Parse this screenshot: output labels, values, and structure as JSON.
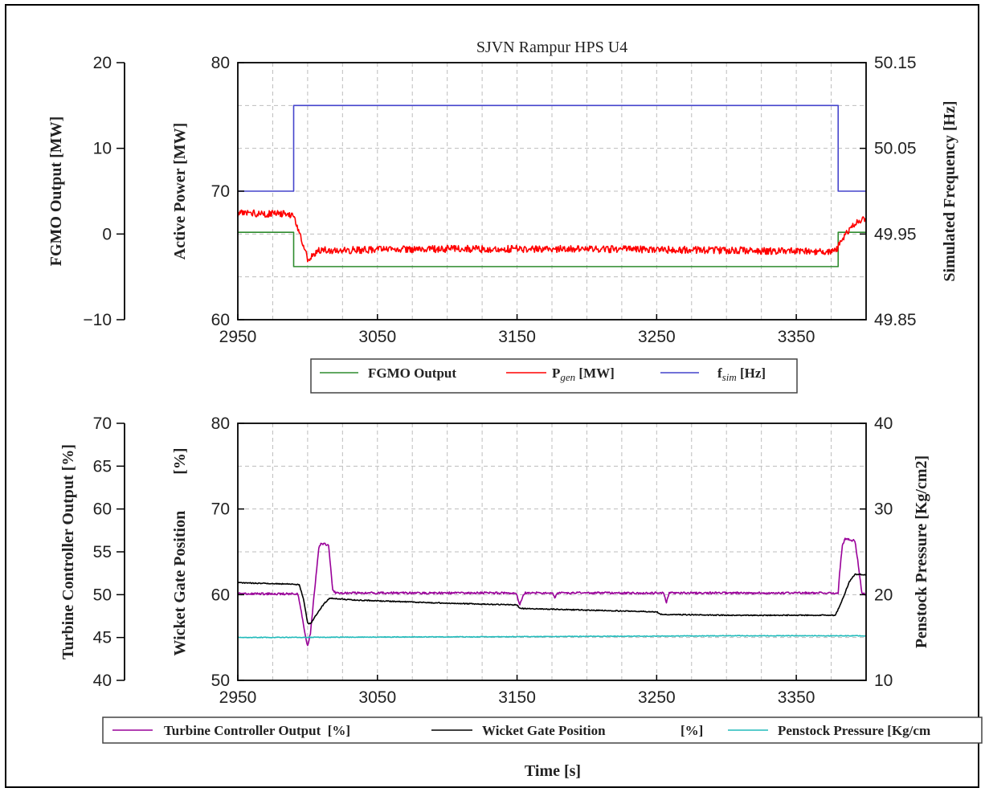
{
  "chart_data": [
    {
      "type": "line",
      "title": "SJVN Rampur HPS U4",
      "x_range": [
        2950,
        3400
      ],
      "x_ticks": [
        "2950",
        "3050",
        "3150",
        "3250",
        "3350"
      ],
      "grid": true,
      "legend_position": "bottom",
      "axes": {
        "outer_left": {
          "label": "FGMO Output [MW]",
          "range": [
            -10,
            20
          ],
          "ticks": [
            "20",
            "10",
            "0",
            "−10"
          ]
        },
        "inner_left": {
          "label": "Active Power [MW]",
          "range": [
            60,
            80
          ],
          "ticks": [
            "80",
            "70",
            "60"
          ]
        },
        "right": {
          "label": "Simulated Frequency  [Hz]",
          "range": [
            49.85,
            50.15
          ],
          "ticks": [
            "50.15",
            "50.05",
            "49.95",
            "49.85"
          ]
        }
      },
      "series": [
        {
          "name": "FGMO Output",
          "color": "#2e8b2e",
          "axis": "outer_left",
          "points": [
            [
              2950,
              0.2
            ],
            [
              2990,
              0.2
            ],
            [
              2990,
              -3.8
            ],
            [
              3380,
              -3.8
            ],
            [
              3380,
              0.2
            ],
            [
              3400,
              0.2
            ]
          ]
        },
        {
          "name": "P_gen [MW]",
          "color": "#ff0000",
          "axis": "inner_left",
          "noise": 0.28,
          "points": [
            [
              2950,
              68.3
            ],
            [
              2989,
              68.2
            ],
            [
              2993,
              67.2
            ],
            [
              2997,
              65.8
            ],
            [
              3000,
              64.7
            ],
            [
              3008,
              65.4
            ],
            [
              3020,
              65.4
            ],
            [
              3100,
              65.5
            ],
            [
              3200,
              65.5
            ],
            [
              3300,
              65.4
            ],
            [
              3370,
              65.3
            ],
            [
              3378,
              65.3
            ],
            [
              3383,
              66.2
            ],
            [
              3390,
              67.3
            ],
            [
              3396,
              67.8
            ],
            [
              3400,
              67.9
            ]
          ]
        },
        {
          "name": "f_sim [Hz]",
          "color": "#4444cc",
          "axis": "right",
          "points": [
            [
              2950,
              50.0
            ],
            [
              2990,
              50.0
            ],
            [
              2990,
              50.1
            ],
            [
              3380,
              50.1
            ],
            [
              3380,
              50.0
            ],
            [
              3400,
              50.0
            ]
          ]
        }
      ],
      "legend": [
        {
          "label": "FGMO Output",
          "label_main": "FGMO Output",
          "label_sub": "",
          "label_tail": ""
        },
        {
          "label": "Pgen [MW]",
          "label_main": "P",
          "label_sub": "gen",
          "label_tail": " [MW]"
        },
        {
          "label": "fsim [Hz]",
          "label_main": "f",
          "label_sub": "sim",
          "label_tail": " [Hz]"
        }
      ]
    },
    {
      "type": "line",
      "x_range": [
        2950,
        3400
      ],
      "x_ticks": [
        "2950",
        "3050",
        "3150",
        "3250",
        "3350"
      ],
      "xlabel": "Time [s]",
      "grid": true,
      "legend_position": "bottom",
      "axes": {
        "outer_left": {
          "label": "Turbine Controller Output  [%]",
          "range": [
            40,
            70
          ],
          "ticks": [
            "70",
            "65",
            "60",
            "55",
            "50",
            "45",
            "40"
          ]
        },
        "inner_left": {
          "label": "Wicket Gate Position         [%]",
          "range": [
            50,
            80
          ],
          "ticks": [
            "80",
            "70",
            "60",
            "50"
          ]
        },
        "right": {
          "label": "Penstock Pressure [Kg/cm2]",
          "range": [
            10,
            40
          ],
          "ticks": [
            "40",
            "30",
            "20",
            "10"
          ]
        }
      },
      "series": [
        {
          "name": "Turbine Controller Output  [%]",
          "color": "#990099",
          "axis": "outer_left",
          "noise": 0.12,
          "points": [
            [
              2950,
              50.1
            ],
            [
              2993,
              50.1
            ],
            [
              2995,
              48.5
            ],
            [
              2998,
              45.5
            ],
            [
              3000,
              44.0
            ],
            [
              3002,
              45.5
            ],
            [
              3005,
              50.5
            ],
            [
              3008,
              55.5
            ],
            [
              3010,
              56.0
            ],
            [
              3015,
              55.8
            ],
            [
              3016,
              54.0
            ],
            [
              3018,
              50.5
            ],
            [
              3020,
              50.2
            ],
            [
              3100,
              50.2
            ],
            [
              3148,
              50.2
            ],
            [
              3150,
              49.9
            ],
            [
              3152,
              48.8
            ],
            [
              3154,
              49.8
            ],
            [
              3156,
              50.2
            ],
            [
              3175,
              50.2
            ],
            [
              3177,
              49.7
            ],
            [
              3179,
              50.2
            ],
            [
              3255,
              50.2
            ],
            [
              3256,
              49.6
            ],
            [
              3257,
              49.1
            ],
            [
              3259,
              50.2
            ],
            [
              3380,
              50.2
            ],
            [
              3381,
              52.5
            ],
            [
              3383,
              55.8
            ],
            [
              3385,
              56.5
            ],
            [
              3392,
              56.3
            ],
            [
              3394,
              54.0
            ],
            [
              3397,
              50.2
            ],
            [
              3400,
              50.0
            ]
          ]
        },
        {
          "name": "Wicket Gate Position         [%]",
          "color": "#000000",
          "axis": "inner_left",
          "noise": 0.06,
          "points": [
            [
              2950,
              61.4
            ],
            [
              2994,
              61.2
            ],
            [
              2997,
              59.5
            ],
            [
              3000,
              56.7
            ],
            [
              3002,
              56.6
            ],
            [
              3006,
              57.6
            ],
            [
              3012,
              59.0
            ],
            [
              3016,
              59.6
            ],
            [
              3030,
              59.4
            ],
            [
              3100,
              59.0
            ],
            [
              3150,
              58.8
            ],
            [
              3152,
              58.4
            ],
            [
              3200,
              58.2
            ],
            [
              3250,
              58.0
            ],
            [
              3253,
              57.7
            ],
            [
              3300,
              57.6
            ],
            [
              3378,
              57.6
            ],
            [
              3382,
              59.0
            ],
            [
              3388,
              61.5
            ],
            [
              3392,
              62.4
            ],
            [
              3400,
              62.3
            ]
          ]
        },
        {
          "name": "Penstock Pressure [Kg/cm2]",
          "color": "#22bbbb",
          "axis": "right",
          "noise": 0.04,
          "points": [
            [
              2950,
              15.0
            ],
            [
              3150,
              15.1
            ],
            [
              3300,
              15.2
            ],
            [
              3400,
              15.2
            ]
          ]
        }
      ],
      "legend": [
        {
          "label": "Turbine Controller Output  [%]"
        },
        {
          "label": "Wicket Gate Position"
        },
        {
          "label": "[%]"
        },
        {
          "label": "Penstock Pressure [Kg/cm"
        }
      ]
    }
  ]
}
